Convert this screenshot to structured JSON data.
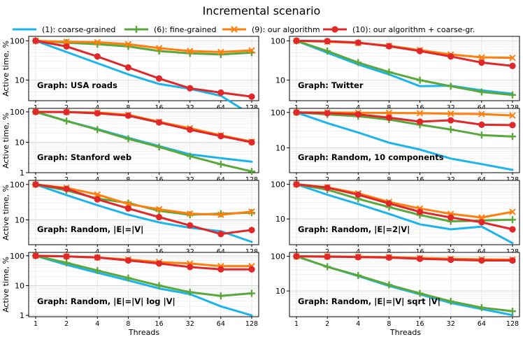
{
  "chart_data": {
    "title": "Incremental scenario",
    "type": "line",
    "xlabel": "Threads",
    "ylabel": "Active time, %",
    "x": [
      1,
      2,
      4,
      8,
      16,
      32,
      64,
      128
    ],
    "x_ticks": [
      "1",
      "2",
      "4",
      "8",
      "16",
      "32",
      "64",
      "128"
    ],
    "y_scale": "log",
    "grid": true,
    "legend_position": "top",
    "series_meta": [
      {
        "name": "(1): coarse-grained",
        "color": "#1cb4ea",
        "marker": "none"
      },
      {
        "name": "(6): fine-grained",
        "color": "#5aa83c",
        "marker": "plus"
      },
      {
        "name": "(9): our algorithm",
        "color": "#ff7f0e",
        "marker": "x"
      },
      {
        "name": "(10): our algorithm + coarse-gr.",
        "color": "#e0282b",
        "marker": "circle"
      }
    ],
    "panels": [
      {
        "label": "Graph: USA roads",
        "ylim": [
          3,
          130
        ],
        "yticks": [
          10,
          100
        ],
        "series": [
          [
            100,
            52,
            27,
            14,
            8,
            6,
            4,
            1.3
          ],
          [
            100,
            90,
            82,
            72,
            55,
            48,
            45,
            50
          ],
          [
            100,
            95,
            92,
            82,
            65,
            55,
            52,
            57
          ],
          [
            100,
            72,
            40,
            21,
            11,
            6.2,
            4.8,
            3.8
          ]
        ]
      },
      {
        "label": "Graph: Twitter",
        "ylim": [
          3,
          130
        ],
        "yticks": [
          10,
          100
        ],
        "series": [
          [
            100,
            50,
            25,
            14,
            7,
            7.2,
            5.5,
            4.5
          ],
          [
            100,
            55,
            28,
            16,
            10,
            7,
            5,
            4.2
          ],
          [
            100,
            95,
            88,
            75,
            58,
            45,
            38,
            37
          ],
          [
            100,
            98,
            90,
            73,
            55,
            40,
            28,
            23
          ]
        ]
      },
      {
        "label": "Graph: Stanford web",
        "ylim": [
          1,
          130
        ],
        "yticks": [
          1,
          10,
          100
        ],
        "series": [
          [
            100,
            50,
            27,
            14,
            7.5,
            4,
            3,
            2.3
          ],
          [
            100,
            50,
            26,
            13,
            7,
            3.5,
            1.9,
            1.1
          ],
          [
            100,
            98,
            95,
            80,
            47,
            29,
            17,
            10.5
          ],
          [
            100,
            98,
            90,
            75,
            45,
            26,
            16,
            10
          ]
        ]
      },
      {
        "label": "Graph: Random, 10 components",
        "ylim": [
          2,
          130
        ],
        "yticks": [
          10,
          100
        ],
        "series": [
          [
            100,
            50,
            27,
            14,
            9,
            5,
            3.5,
            2.4
          ],
          [
            100,
            88,
            78,
            63,
            45,
            33,
            23,
            21
          ],
          [
            100,
            100,
            98,
            97,
            95,
            92,
            90,
            82
          ],
          [
            100,
            95,
            88,
            71,
            55,
            60,
            45,
            44
          ]
        ]
      },
      {
        "label": "Graph: Random, |E|=|V|",
        "ylim": [
          2,
          130
        ],
        "yticks": [
          10,
          100
        ],
        "series": [
          [
            100,
            50,
            26,
            14,
            8.5,
            6,
            4.8,
            2.4
          ],
          [
            100,
            68,
            40,
            30,
            18,
            14,
            15,
            16
          ],
          [
            100,
            80,
            52,
            28,
            20,
            15,
            14,
            17
          ],
          [
            100,
            75,
            38,
            21,
            12,
            7,
            4,
            5.2
          ]
        ]
      },
      {
        "label": "Graph: Random, |E|=2|V|",
        "ylim": [
          1.8,
          130
        ],
        "yticks": [
          10,
          100
        ],
        "series": [
          [
            100,
            50,
            27,
            14,
            7,
            5,
            6,
            2
          ],
          [
            100,
            70,
            38,
            22,
            13,
            8.5,
            9,
            9.5
          ],
          [
            100,
            82,
            55,
            31,
            20,
            14,
            11,
            16
          ],
          [
            100,
            80,
            50,
            28,
            16,
            11,
            8,
            5
          ]
        ]
      },
      {
        "label": "Graph: Random, |E|=|V| log |V|",
        "ylim": [
          0.9,
          130
        ],
        "yticks": [
          1,
          10,
          100
        ],
        "series": [
          [
            100,
            50,
            27,
            15,
            8,
            5.2,
            2,
            1
          ],
          [
            100,
            58,
            32,
            18,
            10,
            6,
            4.5,
            5.5
          ],
          [
            100,
            95,
            88,
            75,
            62,
            55,
            45,
            45
          ],
          [
            100,
            95,
            88,
            70,
            55,
            42,
            35,
            35
          ]
        ]
      },
      {
        "label": "Graph: Random, |E|=|V| sqrt |V|",
        "ylim": [
          1.8,
          130
        ],
        "yticks": [
          10,
          100
        ],
        "series": [
          [
            100,
            50,
            27,
            14,
            8,
            4.5,
            3,
            2
          ],
          [
            100,
            50,
            28,
            15,
            8.5,
            5,
            3.3,
            2.6
          ],
          [
            100,
            100,
            98,
            95,
            90,
            85,
            82,
            80
          ],
          [
            100,
            98,
            95,
            92,
            85,
            80,
            76,
            76
          ]
        ]
      }
    ]
  }
}
